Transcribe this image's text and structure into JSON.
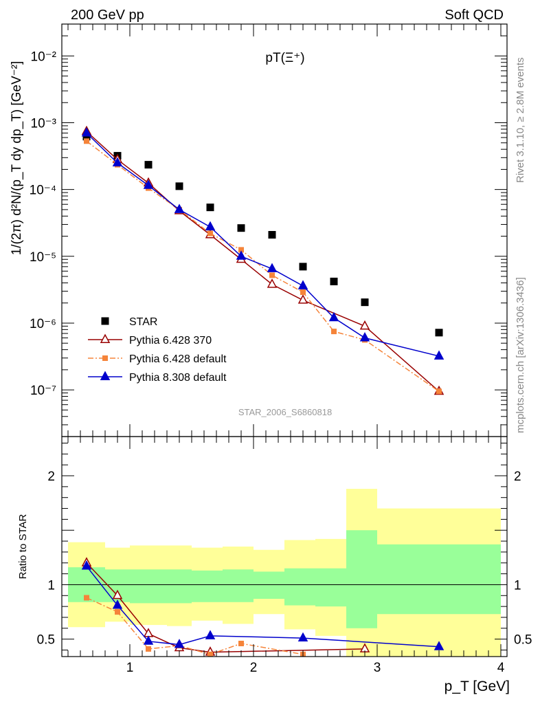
{
  "header": {
    "left": "200 GeV pp",
    "right": "Soft QCD",
    "side_top": "Rivet 3.1.10, ≥ 2.8M events",
    "side_bottom": "mcplots.cern.ch [arXiv:1306.3436]",
    "watermark": "STAR_2006_S6860818"
  },
  "colors": {
    "star": "#000000",
    "py6_370": "#990000",
    "py6_default": "#f5843a",
    "py8_default": "#0000cc",
    "band_inner": "#99ff99",
    "band_outer": "#ffff99"
  },
  "chart_data": [
    {
      "type": "scatter",
      "panel": "main",
      "title": "pT(Ξ⁺)",
      "xlabel": "",
      "ylabel": "1/(2π) d²N/(p_T dy dp_T) [GeV⁻²]",
      "yscale": "log",
      "xlim": [
        0.45,
        4.05
      ],
      "ylim": [
        2e-08,
        0.03
      ],
      "y_ticks": [
        {
          "value": 1e-07,
          "label": "10⁻⁷"
        },
        {
          "value": 1e-06,
          "label": "10⁻⁶"
        },
        {
          "value": 1e-05,
          "label": "10⁻⁵"
        },
        {
          "value": 0.0001,
          "label": "10⁻⁴"
        },
        {
          "value": 0.001,
          "label": "10⁻³"
        },
        {
          "value": 0.01,
          "label": "10⁻²"
        }
      ],
      "legend_position": "bottom-left",
      "series": [
        {
          "name": "STAR",
          "style": "square",
          "x": [
            0.65,
            0.9,
            1.15,
            1.4,
            1.65,
            1.9,
            2.15,
            2.4,
            2.65,
            2.9,
            3.5
          ],
          "y": [
            0.00062,
            0.00032,
            0.000235,
            0.000112,
            5.4e-05,
            2.65e-05,
            2.1e-05,
            7e-06,
            4.2e-06,
            2.05e-06,
            7.2e-07
          ]
        },
        {
          "name": "Pythia 6.428 370",
          "style": "open-triangle-line",
          "x": [
            0.65,
            0.9,
            1.15,
            1.4,
            1.65,
            1.9,
            2.15,
            2.4,
            2.9,
            3.5
          ],
          "y": [
            0.00074,
            0.00028,
            0.000125,
            4.8e-05,
            2.1e-05,
            9e-06,
            3.8e-06,
            2.2e-06,
            9e-07,
            9.5e-08
          ]
        },
        {
          "name": "Pythia 6.428 default",
          "style": "square-dashdot",
          "x": [
            0.65,
            0.9,
            1.15,
            1.4,
            1.65,
            1.9,
            2.15,
            2.4,
            2.65,
            2.9,
            3.5
          ],
          "y": [
            0.00053,
            0.000235,
            0.000105,
            5e-05,
            2.2e-05,
            1.25e-05,
            5.2e-06,
            2.9e-06,
            7.5e-07,
            5.6e-07,
            9.5e-08
          ]
        },
        {
          "name": "Pythia 8.308 default",
          "style": "filled-triangle-line",
          "x": [
            0.65,
            0.9,
            1.15,
            1.4,
            1.65,
            1.9,
            2.15,
            2.4,
            2.65,
            2.9,
            3.5
          ],
          "y": [
            0.0007,
            0.00025,
            0.000115,
            5e-05,
            2.75e-05,
            1e-05,
            6.5e-06,
            3.6e-06,
            1.2e-06,
            6e-07,
            3.2e-07
          ]
        }
      ]
    },
    {
      "type": "line",
      "panel": "ratio",
      "title": "",
      "xlabel": "p_T [GeV]",
      "ylabel": "Ratio to STAR",
      "xlim": [
        0.45,
        4.05
      ],
      "ylim": [
        0.34,
        2.36
      ],
      "x_ticks": [
        {
          "value": 1,
          "label": "1"
        },
        {
          "value": 2,
          "label": "2"
        },
        {
          "value": 3,
          "label": "3"
        },
        {
          "value": 4,
          "label": "4"
        }
      ],
      "y_ticks": [
        {
          "value": 0.5,
          "label": "0.5"
        },
        {
          "value": 1,
          "label": "1"
        },
        {
          "value": 2,
          "label": "2"
        }
      ],
      "bands": [
        {
          "x0": 0.5,
          "x1": 0.8,
          "inner": [
            0.84,
            1.16
          ],
          "outer": [
            0.61,
            1.39
          ]
        },
        {
          "x0": 0.8,
          "x1": 1.0,
          "inner": [
            0.84,
            1.14
          ],
          "outer": [
            0.66,
            1.34
          ]
        },
        {
          "x0": 1.0,
          "x1": 1.3,
          "inner": [
            0.83,
            1.14
          ],
          "outer": [
            0.63,
            1.36
          ]
        },
        {
          "x0": 1.3,
          "x1": 1.5,
          "inner": [
            0.83,
            1.14
          ],
          "outer": [
            0.62,
            1.36
          ]
        },
        {
          "x0": 1.5,
          "x1": 1.75,
          "inner": [
            0.84,
            1.13
          ],
          "outer": [
            0.67,
            1.34
          ]
        },
        {
          "x0": 1.75,
          "x1": 2.0,
          "inner": [
            0.84,
            1.14
          ],
          "outer": [
            0.64,
            1.35
          ]
        },
        {
          "x0": 2.0,
          "x1": 2.25,
          "inner": [
            0.87,
            1.12
          ],
          "outer": [
            0.73,
            1.32
          ]
        },
        {
          "x0": 2.25,
          "x1": 2.5,
          "inner": [
            0.81,
            1.15
          ],
          "outer": [
            0.59,
            1.41
          ]
        },
        {
          "x0": 2.5,
          "x1": 2.75,
          "inner": [
            0.8,
            1.15
          ],
          "outer": [
            0.53,
            1.42
          ]
        },
        {
          "x0": 2.75,
          "x1": 3.0,
          "inner": [
            0.6,
            1.5
          ],
          "outer": [
            0.34,
            1.88
          ]
        },
        {
          "x0": 3.0,
          "x1": 4.0,
          "inner": [
            0.73,
            1.37
          ],
          "outer": [
            0.34,
            1.7
          ]
        }
      ],
      "series": [
        {
          "name": "Pythia 6.428 370",
          "x": [
            0.65,
            0.9,
            1.15,
            1.4,
            1.65,
            2.9
          ],
          "y": [
            1.2,
            0.9,
            0.55,
            0.42,
            0.38,
            0.41
          ]
        },
        {
          "name": "Pythia 6.428 default",
          "x": [
            0.65,
            0.9,
            1.15,
            1.4,
            1.65,
            1.9,
            2.4
          ],
          "y": [
            0.88,
            0.75,
            0.41,
            0.44,
            0.36,
            0.46,
            0.36
          ]
        },
        {
          "name": "Pythia 8.308 default",
          "x": [
            0.65,
            0.9,
            1.15,
            1.4,
            1.65,
            2.4,
            3.5
          ],
          "y": [
            1.17,
            0.81,
            0.48,
            0.45,
            0.53,
            0.51,
            0.43
          ]
        }
      ]
    }
  ]
}
